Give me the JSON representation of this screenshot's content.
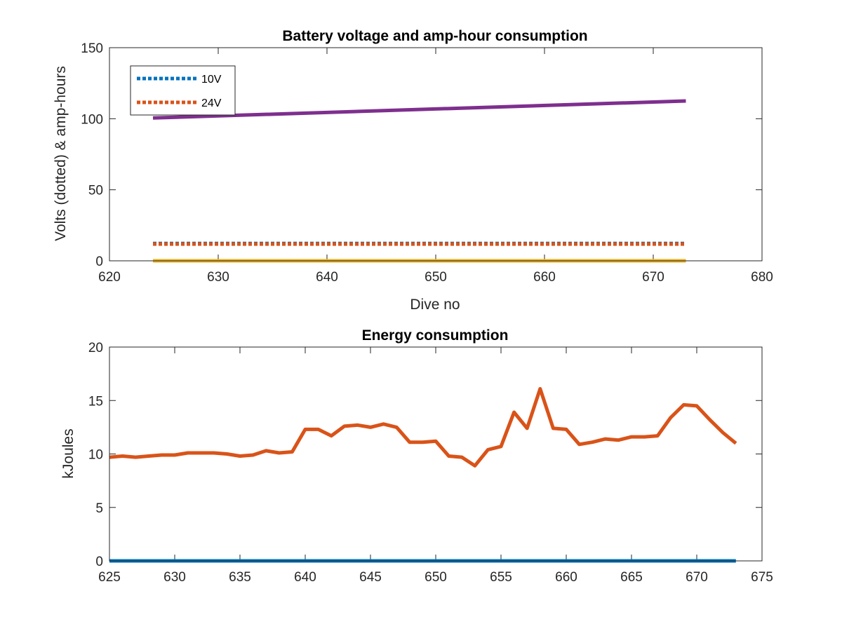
{
  "chart_data": [
    {
      "type": "line",
      "title": "Battery voltage and amp-hour consumption",
      "xlabel": "Dive no",
      "ylabel": "Volts (dotted) & amp-hours",
      "xlim": [
        620,
        680
      ],
      "ylim": [
        0,
        150
      ],
      "xticks": [
        620,
        630,
        640,
        650,
        660,
        670,
        680
      ],
      "yticks": [
        0,
        50,
        100,
        150
      ],
      "grid": false,
      "legend_position": "top-left",
      "series": [
        {
          "name": "10V",
          "color": "#0072BD",
          "style": "dotted",
          "x": [
            624,
            673
          ],
          "y": [
            12.2,
            12.2
          ]
        },
        {
          "name": "24V",
          "color": "#D95319",
          "style": "dotted",
          "x": [
            624,
            673
          ],
          "y": [
            11.8,
            11.8
          ]
        },
        {
          "color": "#EDB120",
          "style": "solid",
          "x": [
            624,
            673
          ],
          "y": [
            0,
            0
          ]
        },
        {
          "color": "#7E2F8E",
          "style": "solid",
          "x": [
            624,
            673
          ],
          "y": [
            100.5,
            112.5
          ]
        }
      ]
    },
    {
      "type": "line",
      "title": "Energy consumption",
      "xlabel": "",
      "ylabel": "kJoules",
      "xlim": [
        625,
        675
      ],
      "ylim": [
        0,
        20
      ],
      "xticks": [
        625,
        630,
        635,
        640,
        645,
        650,
        655,
        660,
        665,
        670,
        675
      ],
      "yticks": [
        0,
        5,
        10,
        15,
        20
      ],
      "grid": false,
      "series": [
        {
          "color": "#0072BD",
          "style": "solid",
          "x": [
            625,
            673
          ],
          "y": [
            0,
            0
          ]
        },
        {
          "color": "#D95319",
          "style": "solid",
          "x": [
            625,
            626,
            627,
            628,
            629,
            630,
            631,
            632,
            633,
            634,
            635,
            636,
            637,
            638,
            639,
            640,
            641,
            642,
            643,
            644,
            645,
            646,
            647,
            648,
            649,
            650,
            651,
            652,
            653,
            654,
            655,
            656,
            657,
            658,
            659,
            660,
            661,
            662,
            663,
            664,
            665,
            666,
            667,
            668,
            669,
            670,
            671,
            672,
            673
          ],
          "y": [
            9.7,
            9.8,
            9.7,
            9.8,
            9.9,
            9.9,
            10.1,
            10.1,
            10.1,
            10.0,
            9.8,
            9.9,
            10.3,
            10.1,
            10.2,
            12.3,
            12.3,
            11.7,
            12.6,
            12.7,
            12.5,
            12.8,
            12.5,
            11.1,
            11.1,
            11.2,
            9.8,
            9.7,
            8.9,
            10.4,
            10.7,
            13.9,
            12.4,
            16.1,
            12.4,
            12.3,
            10.9,
            11.1,
            11.4,
            11.3,
            11.6,
            11.6,
            11.7,
            13.4,
            14.6,
            14.5,
            13.2,
            12.0,
            11.0
          ]
        }
      ]
    }
  ]
}
